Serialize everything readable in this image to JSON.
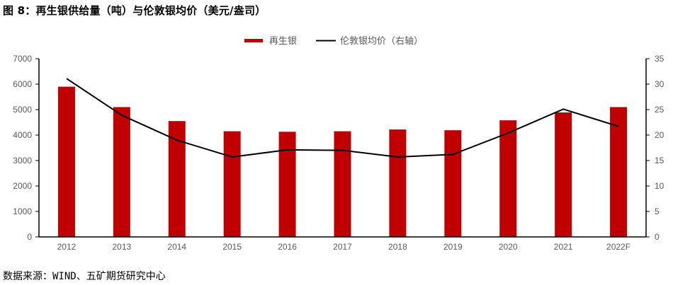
{
  "title": "图 8：再生银供给量（吨）与伦敦银均价（美元/盎司）",
  "source": "数据来源：WIND、五矿期货研究中心",
  "legend": {
    "bar_label": "再生银",
    "line_label": "伦敦银均价（右轴）"
  },
  "colors": {
    "bar": "#C00000",
    "line": "#000000",
    "axis": "#000000",
    "tick_text": "#595959"
  },
  "chart_data": {
    "type": "bar+line",
    "title": "图 8：再生银供给量（吨）与伦敦银均价（美元/盎司）",
    "categories": [
      "2012",
      "2013",
      "2014",
      "2015",
      "2016",
      "2017",
      "2018",
      "2019",
      "2020",
      "2021",
      "2022F"
    ],
    "series": [
      {
        "name": "再生银",
        "type": "bar",
        "axis": "left",
        "unit": "吨",
        "values": [
          5900,
          5100,
          4550,
          4150,
          4130,
          4150,
          4220,
          4190,
          4580,
          4890,
          5100
        ]
      },
      {
        "name": "伦敦银均价（右轴）",
        "type": "line",
        "axis": "right",
        "unit": "美元/盎司",
        "values": [
          31.1,
          23.9,
          19.0,
          15.7,
          17.1,
          17.0,
          15.7,
          16.2,
          20.4,
          25.1,
          21.7
        ]
      }
    ],
    "left_axis": {
      "ylim": [
        0,
        7000
      ],
      "ticks": [
        0,
        1000,
        2000,
        3000,
        4000,
        5000,
        6000,
        7000
      ]
    },
    "right_axis": {
      "ylim": [
        0,
        35
      ],
      "ticks": [
        0,
        5,
        10,
        15,
        20,
        25,
        30,
        35
      ]
    },
    "xlabel": "",
    "ylabel": "",
    "grid": false,
    "legend_position": "top"
  }
}
